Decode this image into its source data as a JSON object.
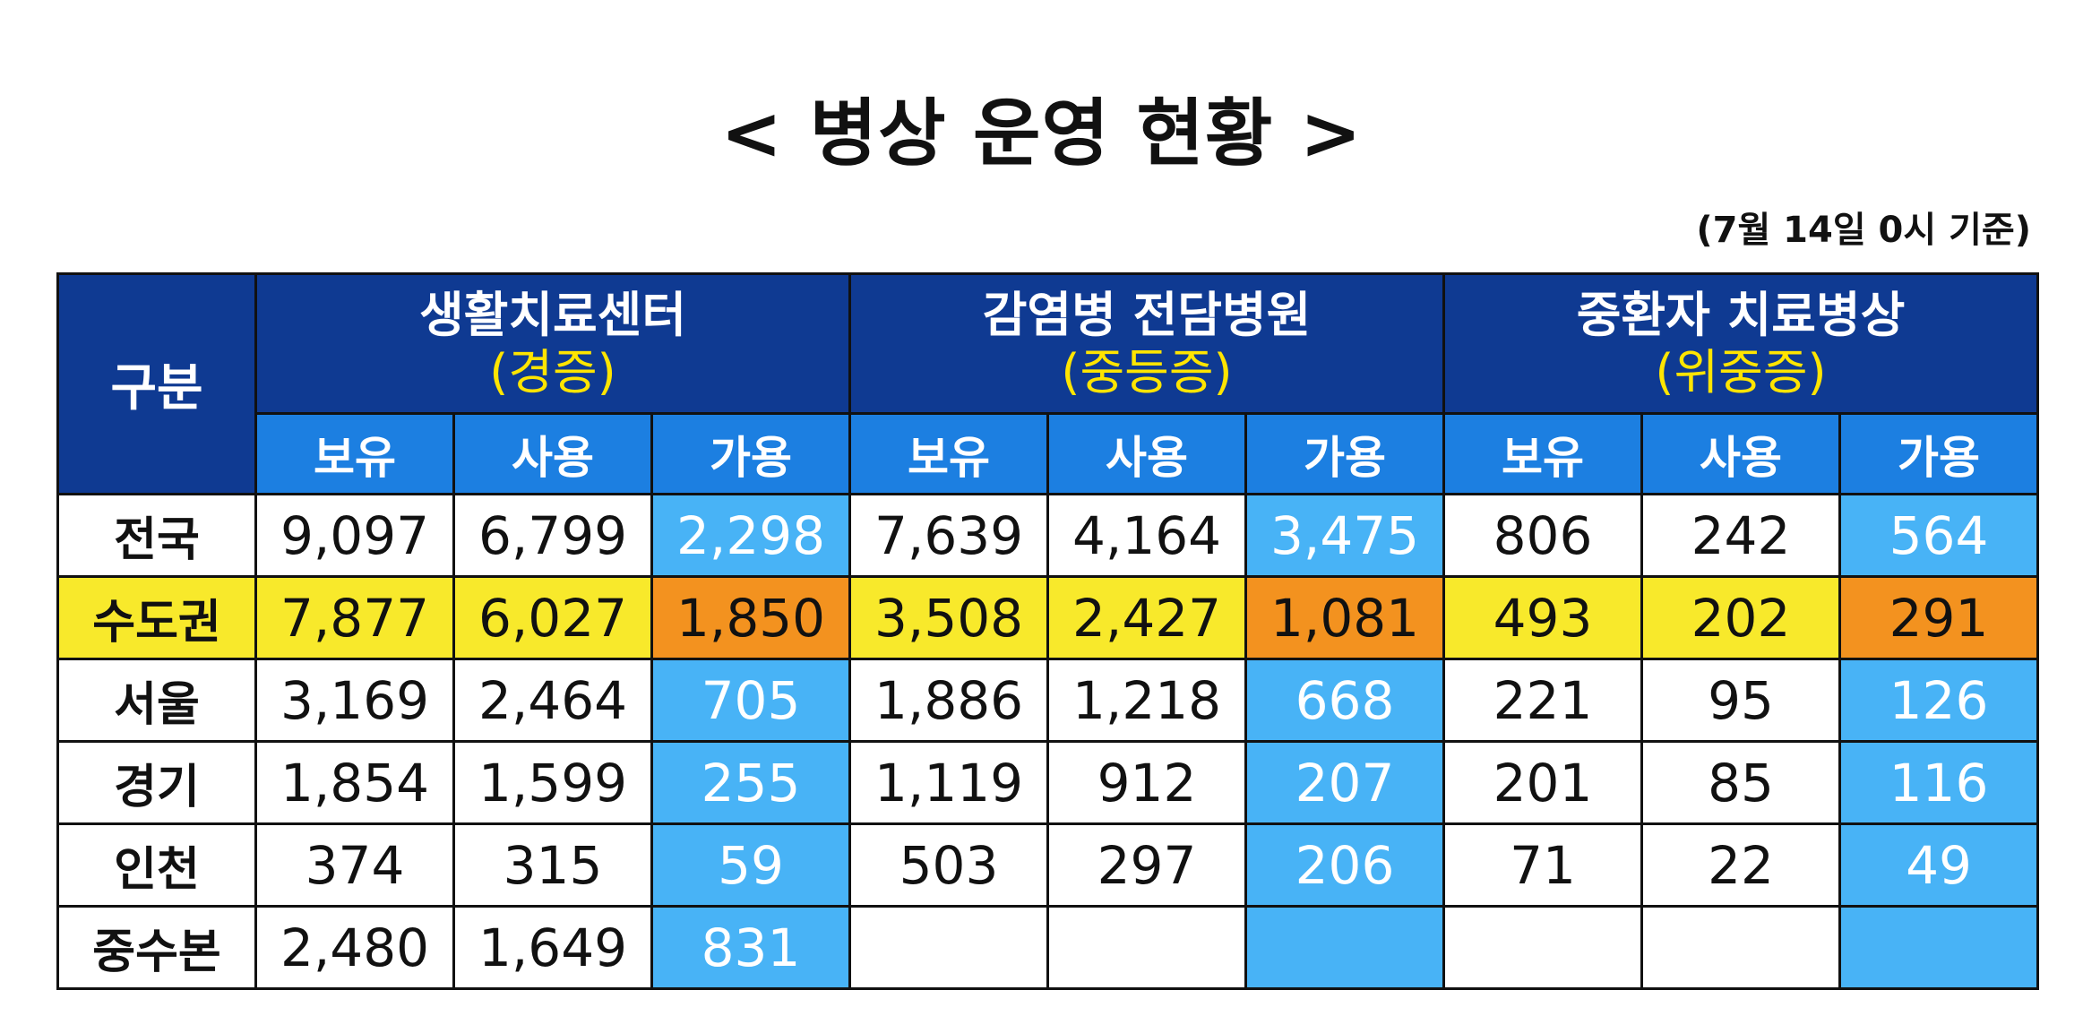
{
  "title": "< 병상 운영 현황 >",
  "date_note": "(7월 14일 0시 기준)",
  "table": {
    "corner": "구분",
    "groups": [
      {
        "name": "생활치료센터",
        "severity": "(경증)",
        "columns": [
          "보유",
          "사용",
          "가용"
        ]
      },
      {
        "name": "감염병 전담병원",
        "severity": "(중등증)",
        "columns": [
          "보유",
          "사용",
          "가용"
        ]
      },
      {
        "name": "중환자 치료병상",
        "severity": "(위중증)",
        "columns": [
          "보유",
          "사용",
          "가용"
        ]
      }
    ],
    "rows": [
      {
        "region": "전국",
        "groups": [
          [
            "9,097",
            "6,799",
            "2,298"
          ],
          [
            "7,639",
            "4,164",
            "3,475"
          ],
          [
            "806",
            "242",
            "564"
          ]
        ]
      },
      {
        "region": "수도권",
        "groups": [
          [
            "7,877",
            "6,027",
            "1,850"
          ],
          [
            "3,508",
            "2,427",
            "1,081"
          ],
          [
            "493",
            "202",
            "291"
          ]
        ]
      },
      {
        "region": "서울",
        "groups": [
          [
            "3,169",
            "2,464",
            "705"
          ],
          [
            "1,886",
            "1,218",
            "668"
          ],
          [
            "221",
            "95",
            "126"
          ]
        ]
      },
      {
        "region": "경기",
        "groups": [
          [
            "1,854",
            "1,599",
            "255"
          ],
          [
            "1,119",
            "912",
            "207"
          ],
          [
            "201",
            "85",
            "116"
          ]
        ]
      },
      {
        "region": "인천",
        "groups": [
          [
            "374",
            "315",
            "59"
          ],
          [
            "503",
            "297",
            "206"
          ],
          [
            "71",
            "22",
            "49"
          ]
        ]
      },
      {
        "region": "중수본",
        "groups": [
          [
            "2,480",
            "1,649",
            "831"
          ]
        ]
      }
    ]
  },
  "colors": {
    "header": "#0f3a92",
    "subheader": "#1c7fe1",
    "available": "#48b3f6",
    "highlight_row": "#f8e92b",
    "highlight_available": "#f3921f",
    "severity_text": "#ffe500"
  }
}
